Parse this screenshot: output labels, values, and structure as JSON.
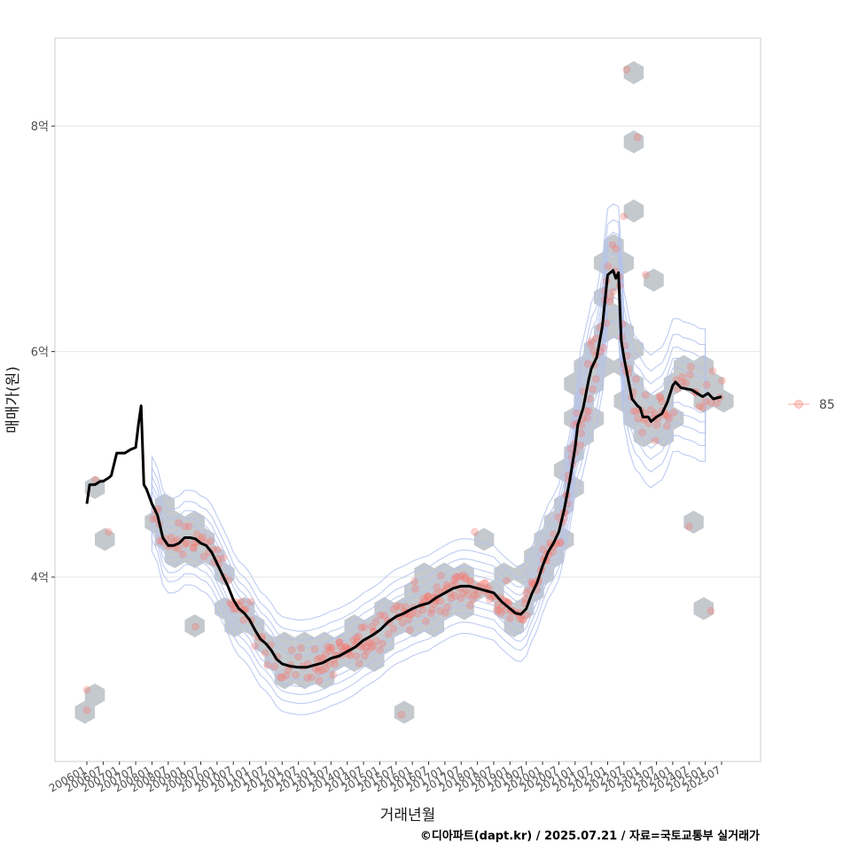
{
  "chart_data": {
    "type": "scatter",
    "title": "",
    "xlabel": "거래년월",
    "ylabel": "매매가(원)",
    "ylim": [
      2.6,
      8.6
    ],
    "y_ticks": [
      {
        "value": 4,
        "label": "4억"
      },
      {
        "value": 6,
        "label": "6억"
      },
      {
        "value": 8,
        "label": "8억"
      }
    ],
    "x_range": [
      "2006-01",
      "2025-07"
    ],
    "x_tick_labels": [
      "200601",
      "200607",
      "200701",
      "200707",
      "200801",
      "200807",
      "200901",
      "200907",
      "201001",
      "201007",
      "201101",
      "201107",
      "201201",
      "201207",
      "201301",
      "201307",
      "201401",
      "201407",
      "201501",
      "201507",
      "201601",
      "201607",
      "201701",
      "201707",
      "201801",
      "201807",
      "201901",
      "201907",
      "202001",
      "202007",
      "202101",
      "202107",
      "202201",
      "202207",
      "202301",
      "202307",
      "202401",
      "202407",
      "202501",
      "202507"
    ],
    "grid": true,
    "legend_position": "right",
    "legend": [
      {
        "label": "85",
        "color": "#F8766D"
      }
    ],
    "colors": {
      "points": "#F8766D",
      "hexbin": "#C4C9CE",
      "contours": "#B3C2EF",
      "trend": "#000000",
      "panel_border": "#CCCCCC",
      "grid": "#E5E5E5"
    },
    "series": [
      {
        "type": "line",
        "points": [
          [
            "2006-01",
            4.65
          ],
          [
            "2006-02",
            4.82
          ],
          [
            "2006-04",
            4.82
          ],
          [
            "2006-06",
            4.85
          ],
          [
            "2006-07",
            4.85
          ],
          [
            "2006-09",
            4.88
          ],
          [
            "2006-10",
            4.9
          ],
          [
            "2006-12",
            5.1
          ],
          [
            "2007-03",
            5.1
          ],
          [
            "2007-05",
            5.13
          ],
          [
            "2007-07",
            5.15
          ],
          [
            "2007-08",
            5.35
          ],
          [
            "2007-09",
            5.52
          ],
          [
            "2007-10",
            4.82
          ],
          [
            "2007-11",
            4.78
          ],
          [
            "2008-01",
            4.65
          ],
          [
            "2008-03",
            4.55
          ],
          [
            "2008-05",
            4.35
          ],
          [
            "2008-07",
            4.28
          ],
          [
            "2008-09",
            4.28
          ],
          [
            "2008-11",
            4.3
          ],
          [
            "2009-01",
            4.35
          ],
          [
            "2009-03",
            4.35
          ],
          [
            "2009-05",
            4.34
          ],
          [
            "2009-07",
            4.3
          ],
          [
            "2009-09",
            4.28
          ],
          [
            "2009-11",
            4.22
          ],
          [
            "2010-01",
            4.12
          ],
          [
            "2010-03",
            4.02
          ],
          [
            "2010-05",
            3.92
          ],
          [
            "2010-07",
            3.8
          ],
          [
            "2010-09",
            3.72
          ],
          [
            "2010-11",
            3.68
          ],
          [
            "2011-01",
            3.62
          ],
          [
            "2011-03",
            3.53
          ],
          [
            "2011-05",
            3.45
          ],
          [
            "2011-07",
            3.41
          ],
          [
            "2011-09",
            3.35
          ],
          [
            "2011-11",
            3.27
          ],
          [
            "2012-01",
            3.23
          ],
          [
            "2012-04",
            3.21
          ],
          [
            "2012-07",
            3.2
          ],
          [
            "2012-10",
            3.2
          ],
          [
            "2013-01",
            3.22
          ],
          [
            "2013-04",
            3.24
          ],
          [
            "2013-07",
            3.28
          ],
          [
            "2013-10",
            3.3
          ],
          [
            "2014-01",
            3.34
          ],
          [
            "2014-04",
            3.38
          ],
          [
            "2014-07",
            3.44
          ],
          [
            "2014-10",
            3.48
          ],
          [
            "2015-01",
            3.53
          ],
          [
            "2015-04",
            3.6
          ],
          [
            "2015-07",
            3.65
          ],
          [
            "2015-10",
            3.68
          ],
          [
            "2016-01",
            3.72
          ],
          [
            "2016-04",
            3.75
          ],
          [
            "2016-07",
            3.77
          ],
          [
            "2016-10",
            3.82
          ],
          [
            "2017-01",
            3.86
          ],
          [
            "2017-04",
            3.9
          ],
          [
            "2017-07",
            3.92
          ],
          [
            "2017-10",
            3.92
          ],
          [
            "2018-01",
            3.9
          ],
          [
            "2018-04",
            3.88
          ],
          [
            "2018-07",
            3.86
          ],
          [
            "2018-10",
            3.78
          ],
          [
            "2019-01",
            3.72
          ],
          [
            "2019-03",
            3.68
          ],
          [
            "2019-05",
            3.67
          ],
          [
            "2019-07",
            3.72
          ],
          [
            "2019-09",
            3.85
          ],
          [
            "2019-11",
            3.95
          ],
          [
            "2020-01",
            4.1
          ],
          [
            "2020-03",
            4.22
          ],
          [
            "2020-05",
            4.3
          ],
          [
            "2020-07",
            4.4
          ],
          [
            "2020-09",
            4.6
          ],
          [
            "2020-11",
            4.85
          ],
          [
            "2021-01",
            5.15
          ],
          [
            "2021-02",
            5.35
          ],
          [
            "2021-04",
            5.5
          ],
          [
            "2021-06",
            5.75
          ],
          [
            "2021-07",
            5.85
          ],
          [
            "2021-09",
            5.95
          ],
          [
            "2021-11",
            6.22
          ],
          [
            "2022-01",
            6.68
          ],
          [
            "2022-03",
            6.72
          ],
          [
            "2022-04",
            6.65
          ],
          [
            "2022-05",
            6.7
          ],
          [
            "2022-06",
            6.1
          ],
          [
            "2022-07",
            5.95
          ],
          [
            "2022-09",
            5.7
          ],
          [
            "2022-10",
            5.58
          ],
          [
            "2022-12",
            5.52
          ],
          [
            "2023-01",
            5.5
          ],
          [
            "2023-02",
            5.42
          ],
          [
            "2023-04",
            5.42
          ],
          [
            "2023-05",
            5.38
          ],
          [
            "2023-07",
            5.42
          ],
          [
            "2023-09",
            5.45
          ],
          [
            "2023-11",
            5.55
          ],
          [
            "2024-01",
            5.7
          ],
          [
            "2024-02",
            5.73
          ],
          [
            "2024-04",
            5.68
          ],
          [
            "2024-06",
            5.67
          ],
          [
            "2024-08",
            5.66
          ],
          [
            "2024-10",
            5.63
          ],
          [
            "2024-12",
            5.6
          ],
          [
            "2025-02",
            5.63
          ],
          [
            "2025-04",
            5.58
          ],
          [
            "2025-07",
            5.6
          ]
        ]
      }
    ]
  },
  "footer": {
    "credit": "©디아파트(dapt.kr) / 2025.07.21 / 자료=국토교통부 실거래가"
  }
}
